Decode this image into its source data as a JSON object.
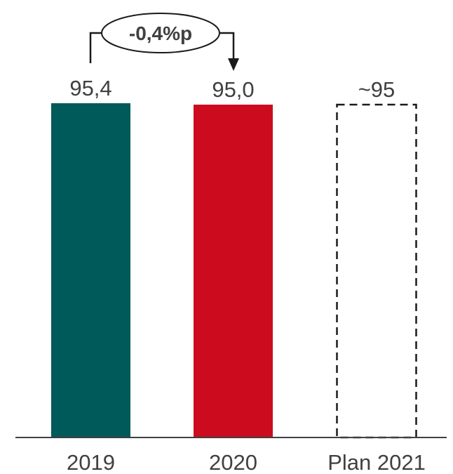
{
  "chart_data": {
    "type": "bar",
    "categories": [
      "2019",
      "2020",
      "Plan 2021"
    ],
    "values": [
      95.4,
      95.0,
      95
    ],
    "value_labels": [
      "95,4",
      "95,0",
      "~95"
    ],
    "bar_colors": [
      "#005a5a",
      "#cc0c1e",
      "#ffffff"
    ],
    "bar_styles": [
      "solid",
      "solid",
      "dashed-outline"
    ],
    "title": "",
    "xlabel": "",
    "ylabel": "",
    "grid": false,
    "annotation": {
      "text": "-0,4%p",
      "from": "2019",
      "to": "2020"
    }
  },
  "colors": {
    "text": "#404040",
    "axis": "#404040",
    "dashed_outline": "#1a1a1a"
  }
}
